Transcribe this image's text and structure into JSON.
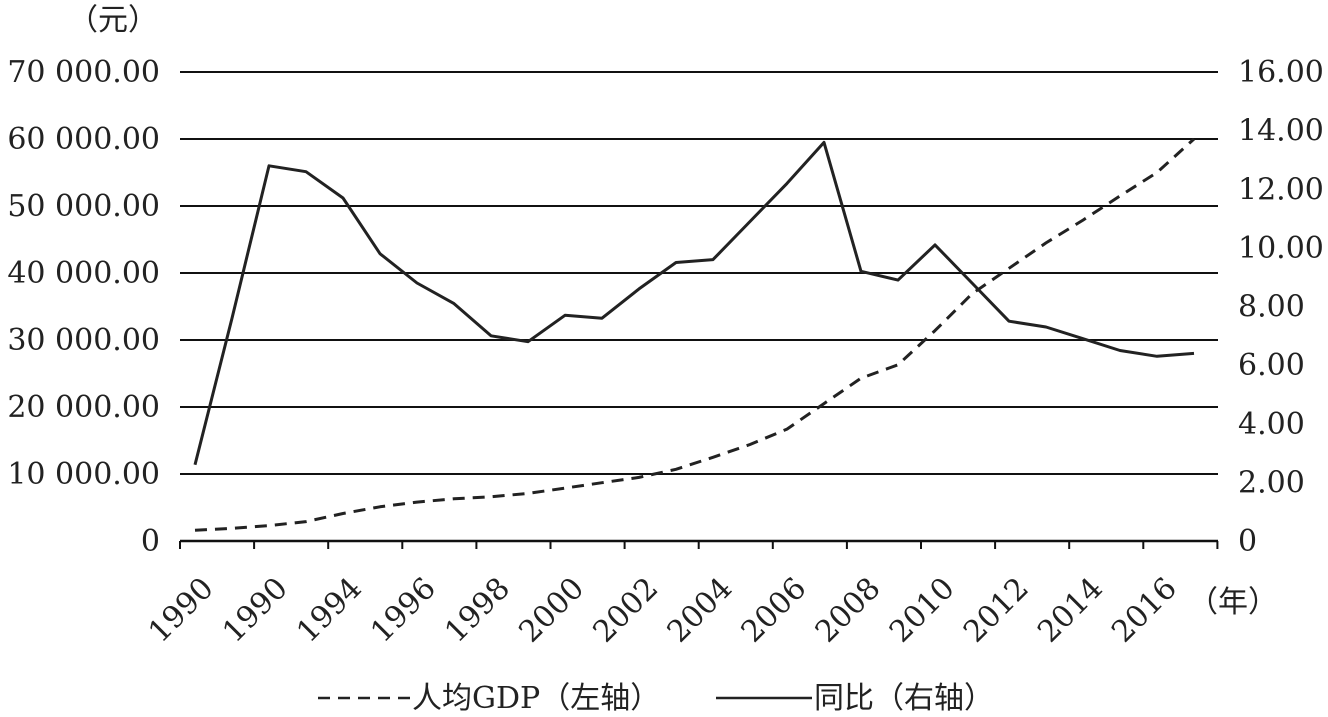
{
  "chart_data": {
    "type": "line",
    "x": [
      1990,
      1991,
      1992,
      1993,
      1994,
      1995,
      1996,
      1997,
      1998,
      1999,
      2000,
      2001,
      2002,
      2003,
      2004,
      2005,
      2006,
      2007,
      2008,
      2009,
      2010,
      2011,
      2012,
      2013,
      2014,
      2015,
      2016,
      2017
    ],
    "series": [
      {
        "name": "人均GDP（左轴）",
        "axis": "left",
        "style": "dashed",
        "values": [
          1600,
          1900,
          2300,
          2900,
          4100,
          5100,
          5800,
          6300,
          6600,
          7100,
          7900,
          8700,
          9500,
          10700,
          12500,
          14400,
          16700,
          20500,
          24300,
          26300,
          31400,
          36900,
          40700,
          44500,
          47900,
          51500,
          55000,
          60000
        ]
      },
      {
        "name": "同比（右轴）",
        "axis": "right",
        "style": "solid",
        "values": [
          2.6,
          7.6,
          12.8,
          12.6,
          11.7,
          9.8,
          8.8,
          8.1,
          7.0,
          6.8,
          7.7,
          7.6,
          8.6,
          9.5,
          9.6,
          10.9,
          12.2,
          13.6,
          9.2,
          8.9,
          10.1,
          8.8,
          7.5,
          7.3,
          6.9,
          6.5,
          6.3,
          6.4
        ]
      }
    ],
    "left_axis": {
      "unit": "（元）",
      "range": [
        0,
        70000
      ],
      "ticks": [
        0,
        10000,
        20000,
        30000,
        40000,
        50000,
        60000,
        70000
      ],
      "tick_labels": [
        "0",
        "10 000.00",
        "20 000.00",
        "30 000.00",
        "40 000.00",
        "50 000.00",
        "60 000.00",
        "70 000.00"
      ]
    },
    "right_axis": {
      "range": [
        0,
        16
      ],
      "tick_labels": [
        "0",
        "2.00",
        "4.00",
        "6.00",
        "8.00",
        "10.00",
        "12.00",
        "14.00",
        "16.00"
      ]
    },
    "x_axis": {
      "unit": "（年）",
      "tick_labels": [
        "1990",
        "1990",
        "1994",
        "1996",
        "1998",
        "2000",
        "2002",
        "2004",
        "2006",
        "2008",
        "2010",
        "2012",
        "2014",
        "2016"
      ]
    },
    "grid": true,
    "legend_position": "bottom"
  }
}
